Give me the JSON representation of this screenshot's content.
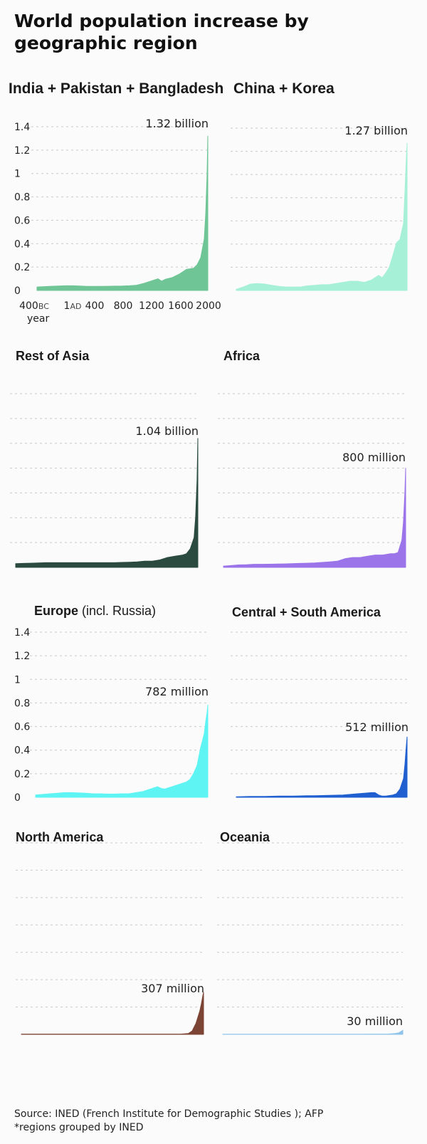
{
  "title": "World population increase by geographic region",
  "footer": {
    "source": "Source: INED (French Institute for Demographic Studies ); AFP",
    "note": "*regions grouped by INED"
  },
  "axis": {
    "y_ticks": [
      "1.4",
      "1.2",
      "1",
      "0.8",
      "0.6",
      "0.4",
      "0.2",
      "0"
    ],
    "x_ticks": [
      {
        "label": "400",
        "suffix": "BC"
      },
      {
        "label": "1",
        "suffix": "AD"
      },
      {
        "label": "400",
        "suffix": ""
      },
      {
        "label": "800",
        "suffix": ""
      },
      {
        "label": "1200",
        "suffix": ""
      },
      {
        "label": "1600",
        "suffix": ""
      },
      {
        "label": "2000",
        "suffix": ""
      }
    ],
    "x_label": "year"
  },
  "chart_data": [
    {
      "type": "area",
      "title": "India + Pakistan + Bangladesh",
      "title_extra": "",
      "annotation": "1.32 billion",
      "color": "#6fc596",
      "ylim": [
        0,
        1.4
      ],
      "unit": "billion",
      "x": [
        -400,
        -300,
        -200,
        -100,
        0,
        100,
        200,
        300,
        400,
        500,
        600,
        700,
        800,
        900,
        1000,
        1100,
        1200,
        1300,
        1350,
        1400,
        1500,
        1600,
        1700,
        1800,
        1850,
        1900,
        1950,
        1970,
        1990,
        2000
      ],
      "values": [
        0.03,
        0.033,
        0.036,
        0.038,
        0.04,
        0.04,
        0.038,
        0.035,
        0.035,
        0.035,
        0.036,
        0.037,
        0.038,
        0.04,
        0.045,
        0.06,
        0.08,
        0.1,
        0.08,
        0.095,
        0.11,
        0.14,
        0.18,
        0.19,
        0.22,
        0.28,
        0.44,
        0.65,
        1.0,
        1.32
      ]
    },
    {
      "type": "area",
      "title": "China + Korea",
      "title_extra": "",
      "annotation": "1.27 billion",
      "color": "#a6f0d8",
      "ylim": [
        0,
        1.4
      ],
      "unit": "billion",
      "x": [
        -400,
        -300,
        -200,
        -100,
        0,
        100,
        200,
        300,
        400,
        500,
        600,
        700,
        800,
        900,
        1000,
        1100,
        1200,
        1300,
        1400,
        1500,
        1600,
        1650,
        1700,
        1750,
        1800,
        1850,
        1900,
        1950,
        1970,
        1990,
        2000
      ],
      "values": [
        0.01,
        0.03,
        0.055,
        0.06,
        0.055,
        0.045,
        0.035,
        0.03,
        0.03,
        0.03,
        0.04,
        0.045,
        0.05,
        0.05,
        0.06,
        0.07,
        0.08,
        0.08,
        0.07,
        0.09,
        0.13,
        0.11,
        0.15,
        0.2,
        0.3,
        0.41,
        0.44,
        0.58,
        0.85,
        1.15,
        1.27
      ]
    },
    {
      "type": "area",
      "title": "Rest of Asia",
      "title_extra": "",
      "annotation": "1.04 billion",
      "color": "#2b4b41",
      "ylim": [
        0,
        1.4
      ],
      "unit": "billion",
      "x": [
        -400,
        -300,
        -200,
        -100,
        0,
        100,
        200,
        300,
        400,
        500,
        600,
        700,
        800,
        900,
        1000,
        1100,
        1200,
        1300,
        1400,
        1500,
        1600,
        1700,
        1800,
        1850,
        1900,
        1950,
        1970,
        1990,
        2000
      ],
      "values": [
        0.03,
        0.032,
        0.034,
        0.036,
        0.038,
        0.038,
        0.038,
        0.038,
        0.038,
        0.038,
        0.038,
        0.038,
        0.038,
        0.038,
        0.04,
        0.042,
        0.045,
        0.05,
        0.05,
        0.06,
        0.08,
        0.09,
        0.1,
        0.11,
        0.15,
        0.24,
        0.4,
        0.7,
        1.04
      ]
    },
    {
      "type": "area",
      "title": "Africa",
      "title_extra": "",
      "annotation": "800 million",
      "color": "#9b74ea",
      "ylim": [
        0,
        1.4
      ],
      "unit": "million",
      "x": [
        -400,
        -300,
        -200,
        -100,
        0,
        100,
        200,
        300,
        400,
        500,
        600,
        700,
        800,
        900,
        1000,
        1100,
        1200,
        1300,
        1400,
        1500,
        1600,
        1700,
        1800,
        1850,
        1900,
        1950,
        1970,
        1990,
        2000
      ],
      "values": [
        0.01,
        0.015,
        0.02,
        0.022,
        0.025,
        0.025,
        0.026,
        0.027,
        0.028,
        0.03,
        0.032,
        0.034,
        0.036,
        0.04,
        0.045,
        0.05,
        0.07,
        0.08,
        0.08,
        0.09,
        0.1,
        0.1,
        0.11,
        0.11,
        0.12,
        0.22,
        0.36,
        0.6,
        0.8
      ]
    },
    {
      "type": "area",
      "title": "Europe",
      "title_extra": "(incl. Russia)",
      "annotation": "782 million",
      "color": "#5ff4f4",
      "ylim": [
        0,
        1.4
      ],
      "unit": "million",
      "x": [
        -400,
        -300,
        -200,
        -100,
        0,
        100,
        200,
        300,
        400,
        500,
        600,
        700,
        800,
        900,
        1000,
        1100,
        1200,
        1300,
        1350,
        1400,
        1500,
        1600,
        1700,
        1750,
        1800,
        1850,
        1900,
        1950,
        1970,
        1990,
        2000
      ],
      "values": [
        0.02,
        0.025,
        0.03,
        0.035,
        0.04,
        0.04,
        0.038,
        0.035,
        0.03,
        0.03,
        0.028,
        0.028,
        0.03,
        0.03,
        0.04,
        0.05,
        0.07,
        0.09,
        0.075,
        0.07,
        0.09,
        0.11,
        0.13,
        0.15,
        0.2,
        0.27,
        0.42,
        0.54,
        0.64,
        0.72,
        0.782
      ]
    },
    {
      "type": "area",
      "title": "Central + South America",
      "title_extra": "",
      "annotation": "512 million",
      "color": "#1f5fd0",
      "ylim": [
        0,
        1.4
      ],
      "unit": "million",
      "x": [
        -400,
        -300,
        -200,
        -100,
        0,
        100,
        200,
        300,
        400,
        500,
        600,
        700,
        800,
        900,
        1000,
        1100,
        1200,
        1300,
        1400,
        1500,
        1550,
        1600,
        1650,
        1700,
        1800,
        1850,
        1900,
        1950,
        1970,
        1990,
        2000
      ],
      "values": [
        0.005,
        0.006,
        0.007,
        0.008,
        0.008,
        0.009,
        0.01,
        0.01,
        0.011,
        0.012,
        0.013,
        0.014,
        0.015,
        0.016,
        0.018,
        0.02,
        0.025,
        0.03,
        0.035,
        0.04,
        0.04,
        0.02,
        0.01,
        0.01,
        0.02,
        0.03,
        0.07,
        0.16,
        0.28,
        0.44,
        0.512
      ]
    },
    {
      "type": "area",
      "title": "North America",
      "title_extra": "",
      "annotation": "307 million",
      "color": "#7c4434",
      "ylim": [
        0,
        1.4
      ],
      "unit": "million",
      "x": [
        -400,
        -200,
        0,
        200,
        400,
        600,
        800,
        1000,
        1200,
        1400,
        1500,
        1600,
        1700,
        1800,
        1850,
        1900,
        1950,
        1970,
        1990,
        2000
      ],
      "values": [
        0.002,
        0.002,
        0.002,
        0.002,
        0.002,
        0.002,
        0.002,
        0.002,
        0.002,
        0.002,
        0.002,
        0.002,
        0.002,
        0.006,
        0.025,
        0.08,
        0.17,
        0.22,
        0.28,
        0.307
      ]
    },
    {
      "type": "area",
      "title": "Oceania",
      "title_extra": "",
      "annotation": "30 million",
      "color": "#8fc4ea",
      "ylim": [
        0,
        1.4
      ],
      "unit": "million",
      "x": [
        -400,
        -200,
        0,
        200,
        400,
        600,
        800,
        1000,
        1200,
        1400,
        1600,
        1800,
        1900,
        1950,
        1970,
        1990,
        2000
      ],
      "values": [
        0.001,
        0.001,
        0.001,
        0.001,
        0.001,
        0.001,
        0.001,
        0.001,
        0.001,
        0.001,
        0.002,
        0.002,
        0.006,
        0.012,
        0.019,
        0.026,
        0.03
      ]
    }
  ]
}
